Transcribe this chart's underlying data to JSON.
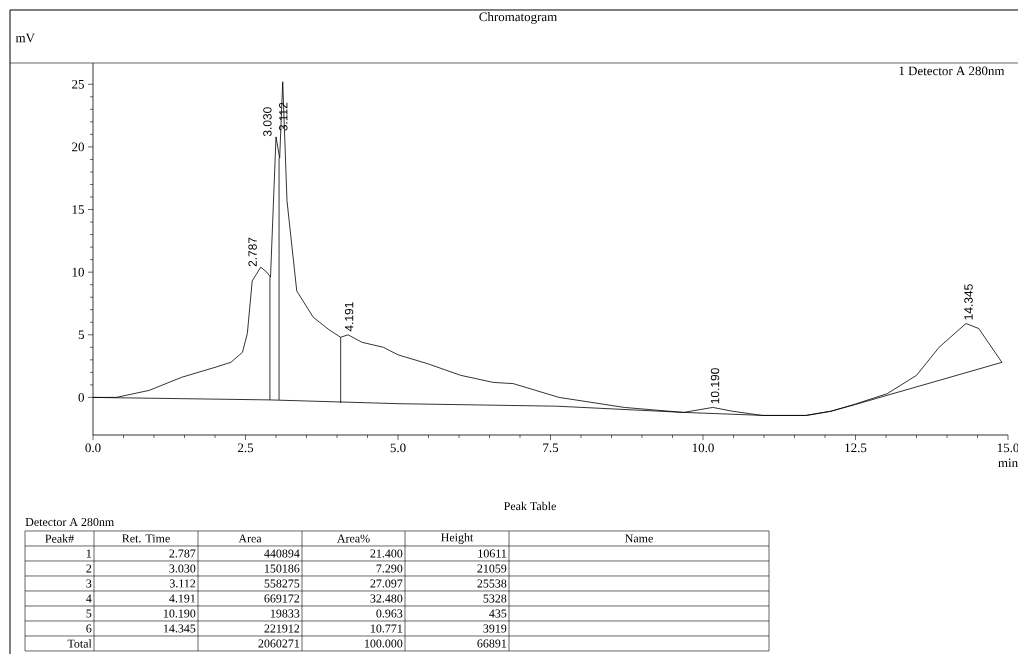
{
  "chart_data": {
    "type": "line",
    "title": "Chromatogram",
    "xlabel": "min",
    "xlim": [
      0,
      15
    ],
    "ylim": [
      -3,
      26.7
    ],
    "xticks": [
      {
        "value": 0,
        "label": "0.0"
      },
      {
        "value": 2.5,
        "label": "2.5"
      },
      {
        "value": 5,
        "label": "5.0"
      },
      {
        "value": 7.5,
        "label": "7.5"
      },
      {
        "value": 10,
        "label": "10.0"
      },
      {
        "value": 12.5,
        "label": "12.5"
      },
      {
        "value": 15,
        "label": "15.0"
      }
    ],
    "yticks": [
      0,
      5,
      10,
      15,
      20,
      25
    ],
    "marker": "none",
    "line_style": "solid",
    "series": [
      {
        "name": "1 Detector A 280nm",
        "color": "#000000",
        "x": [
          0,
          0.38,
          0.92,
          1.45,
          2.0,
          2.26,
          2.45,
          2.53,
          2.61,
          2.75,
          2.85,
          2.91,
          3.0,
          3.06,
          3.11,
          3.18,
          3.34,
          3.61,
          3.87,
          4.06,
          4.18,
          4.41,
          4.76,
          5.0,
          5.48,
          6.03,
          6.56,
          6.89,
          7.64,
          8.71,
          9.68,
          10.16,
          10.48,
          10.97,
          11.68,
          12.1,
          12.48,
          13.02,
          13.5,
          13.87,
          14.31,
          14.52,
          14.9
        ],
        "values": [
          0,
          0,
          0.56,
          1.6,
          2.4,
          2.8,
          3.6,
          5.1,
          9.3,
          10.4,
          10.0,
          9.6,
          20.8,
          19.1,
          25.2,
          15.7,
          8.5,
          6.4,
          5.4,
          4.8,
          5.0,
          4.4,
          4.0,
          3.4,
          2.7,
          1.76,
          1.2,
          1.1,
          0,
          -0.8,
          -1.2,
          -0.8,
          -1.1,
          -1.44,
          -1.44,
          -1.1,
          -0.56,
          0.3,
          1.76,
          4.0,
          5.9,
          5.5,
          2.8
        ]
      },
      {
        "color": "#000000",
        "x": [
          0,
          2.9,
          5.0,
          7.6,
          9.7,
          11.0,
          11.7,
          12.1,
          12.5,
          14.9
        ],
        "values": [
          0,
          -0.2,
          -0.5,
          -0.7,
          -1.2,
          -1.44,
          -1.44,
          -1.1,
          -0.56,
          2.8
        ]
      },
      {
        "color": "#000000",
        "x": [
          2.9,
          2.9
        ],
        "values": [
          -0.2,
          9.6
        ]
      },
      {
        "color": "#000000",
        "x": [
          3.05,
          3.05
        ],
        "values": [
          -0.2,
          19.1
        ]
      },
      {
        "color": "#000000",
        "x": [
          4.06,
          4.06
        ],
        "values": [
          -0.45,
          4.8
        ]
      }
    ],
    "annotations": [
      {
        "text": "2.787",
        "x": 2.787,
        "y": 10.4
      },
      {
        "text": "3.030",
        "x": 3.03,
        "y": 20.8
      },
      {
        "text": "3.112",
        "x": 3.112,
        "y": 21
      },
      {
        "text": "4.191",
        "x": 4.191,
        "y": 5.0
      },
      {
        "text": "10.190",
        "x": 10.19,
        "y": -0.8
      },
      {
        "text": "14.345",
        "x": 14.345,
        "y": 5.9
      },
      "mV",
      "Peak Table",
      "Detector A 280nm",
      "Peak#",
      "Ret. Time",
      "Area",
      "Area%",
      "Height",
      "Name",
      "1",
      "2.787",
      "440894",
      "21.400",
      "10611",
      "2",
      "3.030",
      "150186",
      "7.290",
      "21059",
      "3",
      "3.112",
      "558275",
      "27.097",
      "25538",
      "4",
      "4.191",
      "669172",
      "32.480",
      "5328",
      "5",
      "10.190",
      "19833",
      "0.963",
      "435",
      "6",
      "14.345",
      "221912",
      "10.771",
      "3919",
      "Total",
      "2060271",
      "100.000",
      "66891"
    ]
  }
}
